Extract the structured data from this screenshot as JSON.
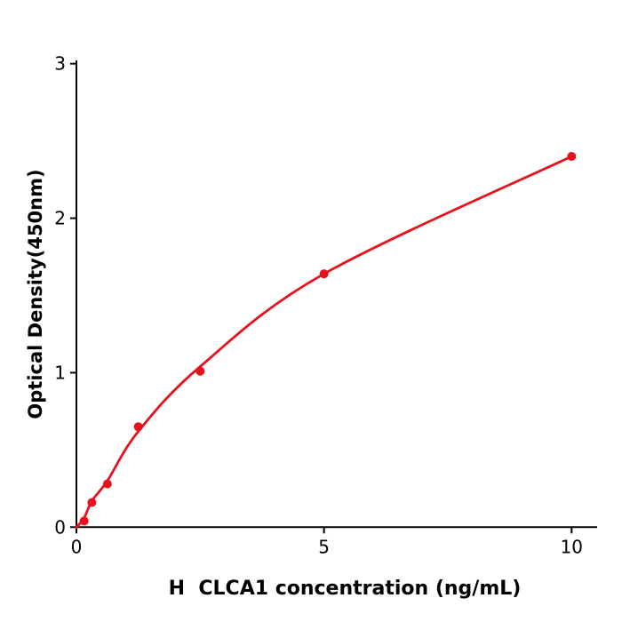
{
  "chart_data": {
    "type": "scatter",
    "title": "",
    "xlabel": "H  CLCA1 concentration (ng/mL)",
    "ylabel": "Optical Density(450nm)",
    "points": {
      "x": [
        0.156,
        0.313,
        0.625,
        1.25,
        2.5,
        5,
        10
      ],
      "y": [
        0.04,
        0.16,
        0.28,
        0.65,
        1.01,
        1.64,
        2.4
      ]
    },
    "fit_curve_anchors": [
      [
        0,
        0.0
      ],
      [
        0.156,
        0.06
      ],
      [
        0.313,
        0.17
      ],
      [
        0.625,
        0.3
      ],
      [
        1.25,
        0.62
      ],
      [
        2.5,
        1.04
      ],
      [
        5,
        1.64
      ],
      [
        10,
        2.4
      ]
    ],
    "xticks": [
      0,
      5,
      10
    ],
    "yticks": [
      0,
      1,
      2,
      3
    ],
    "xlim": [
      0,
      10.5
    ],
    "ylim": [
      0,
      3
    ],
    "grid": false,
    "legend": null,
    "point_color": "#e8121d",
    "line_color": "#e8121d",
    "axis_color": "#000000",
    "point_radius": 5,
    "curve_width": 2.8
  }
}
